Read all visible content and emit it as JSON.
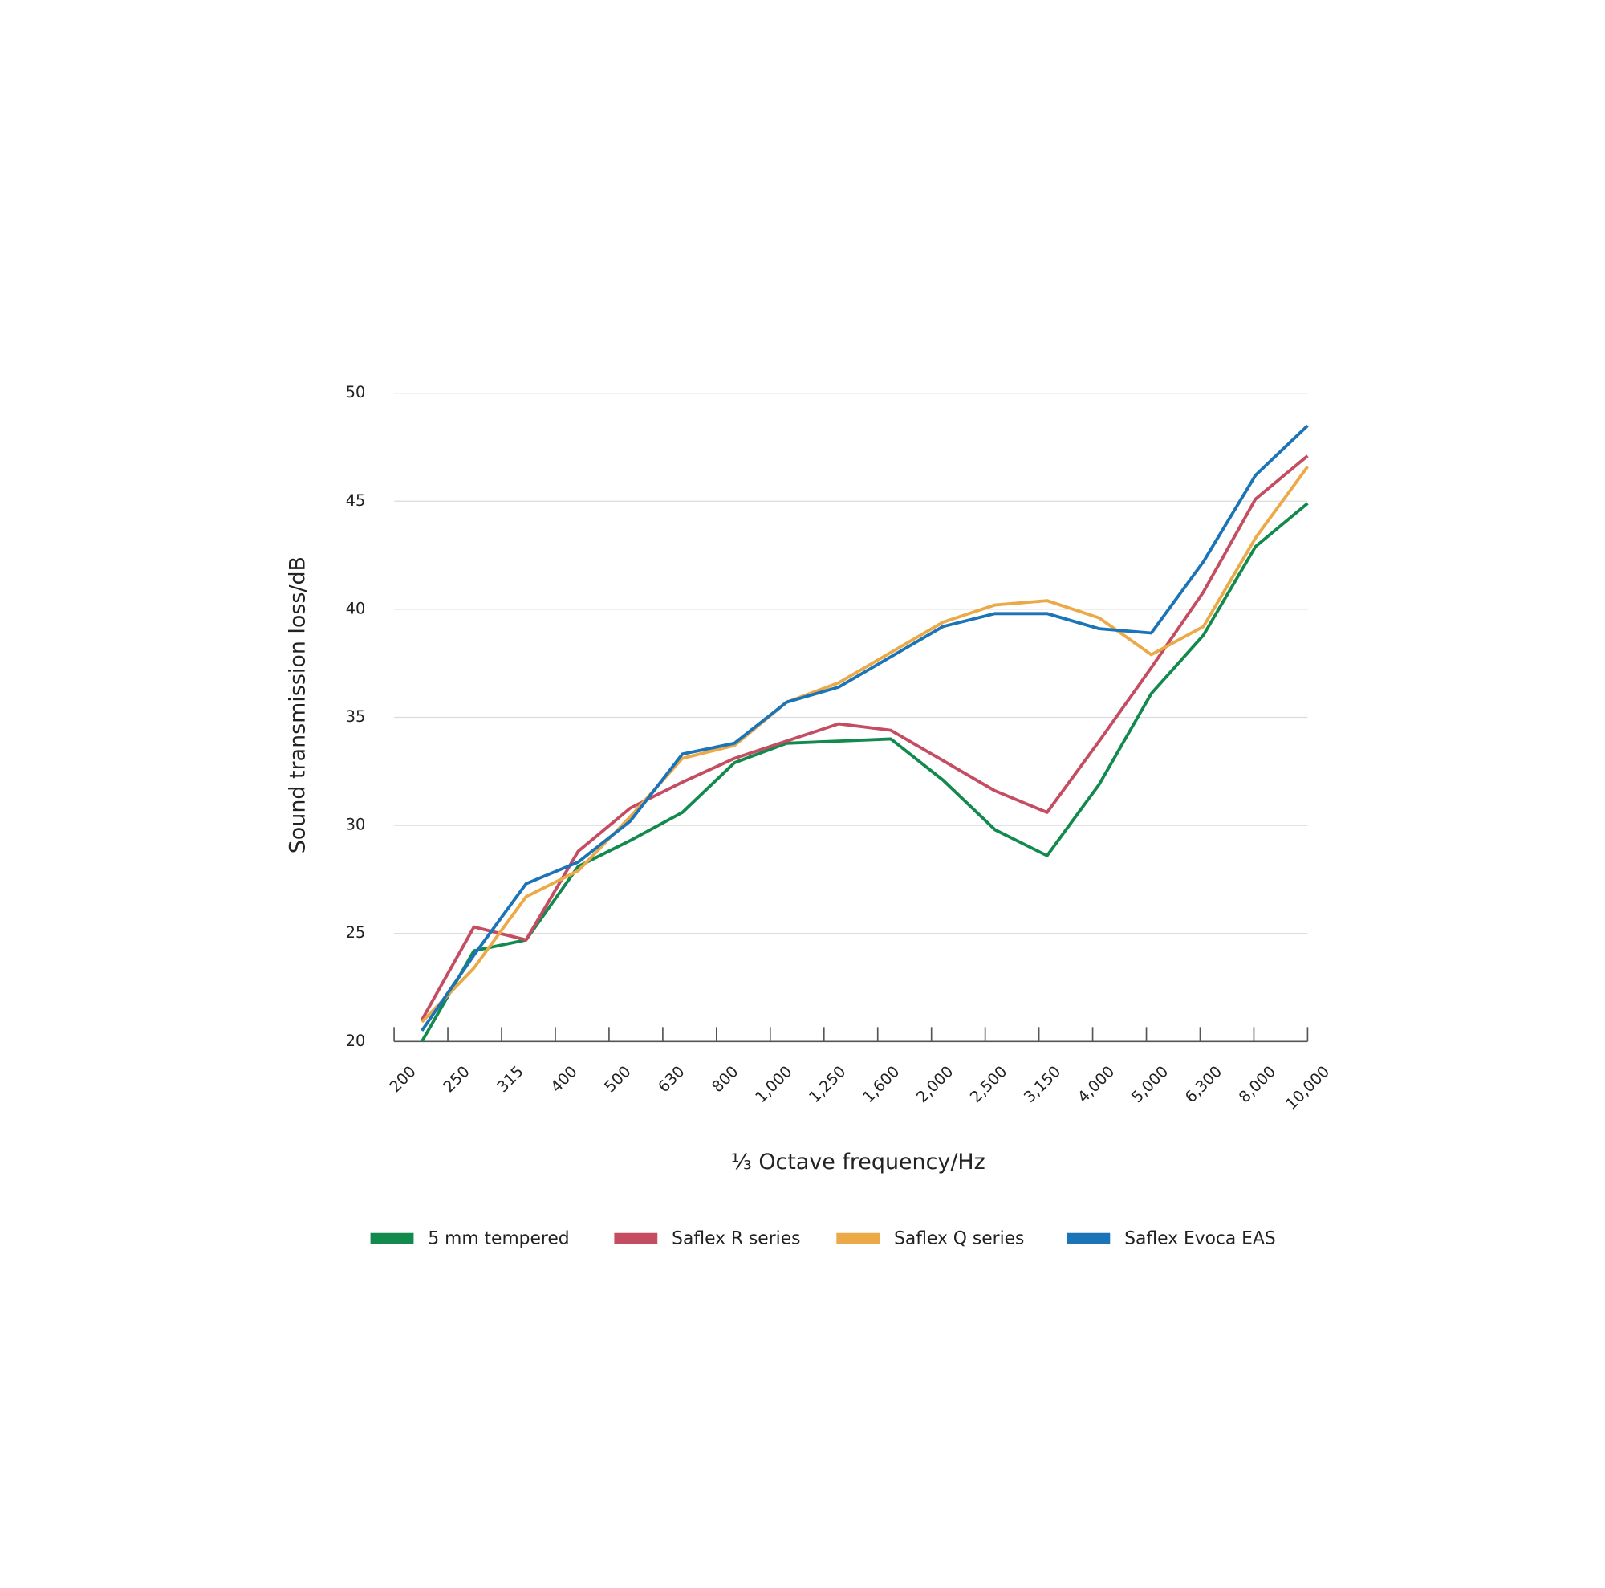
{
  "chart_data": {
    "type": "line",
    "x_label": "⅓ Octave frequency/Hz",
    "y_label": "Sound transmission loss/dB",
    "categories": [
      "200",
      "250",
      "315",
      "400",
      "500",
      "630",
      "800",
      "1,000",
      "1,250",
      "1,600",
      "2,000",
      "2,500",
      "3,150",
      "4,000",
      "5,000",
      "6,300",
      "8,000",
      "10,000"
    ],
    "ylim": [
      20,
      50
    ],
    "yticks": [
      20,
      25,
      30,
      35,
      40,
      45,
      50
    ],
    "grid": true,
    "series": [
      {
        "name": "5 mm tempered",
        "color": "#128a4e",
        "values": [
          20,
          24.2,
          24.7,
          28.1,
          29.3,
          30.6,
          32.9,
          33.8,
          33.9,
          34.0,
          32.1,
          29.8,
          28.6,
          31.9,
          36.1,
          38.8,
          42.9,
          44.9
        ]
      },
      {
        "name": "Saflex R series",
        "color": "#c44d62",
        "values": [
          21.0,
          25.3,
          24.7,
          28.8,
          30.8,
          32.0,
          33.1,
          33.9,
          34.7,
          34.4,
          33.0,
          31.6,
          30.6,
          33.9,
          37.3,
          40.8,
          45.1,
          47.1
        ]
      },
      {
        "name": "Saflex Q series",
        "color": "#eba947",
        "values": [
          20.9,
          23.4,
          26.7,
          27.9,
          30.4,
          33.1,
          33.7,
          35.7,
          36.6,
          38.0,
          39.4,
          40.2,
          40.4,
          39.6,
          37.9,
          39.2,
          43.3,
          46.6
        ]
      },
      {
        "name": "Saflex Evoca EAS",
        "color": "#1b74b8",
        "values": [
          20.5,
          24.0,
          27.3,
          28.3,
          30.2,
          33.3,
          33.8,
          35.7,
          36.4,
          37.8,
          39.2,
          39.8,
          39.8,
          39.1,
          38.9,
          42.2,
          46.2,
          48.5
        ]
      }
    ]
  }
}
